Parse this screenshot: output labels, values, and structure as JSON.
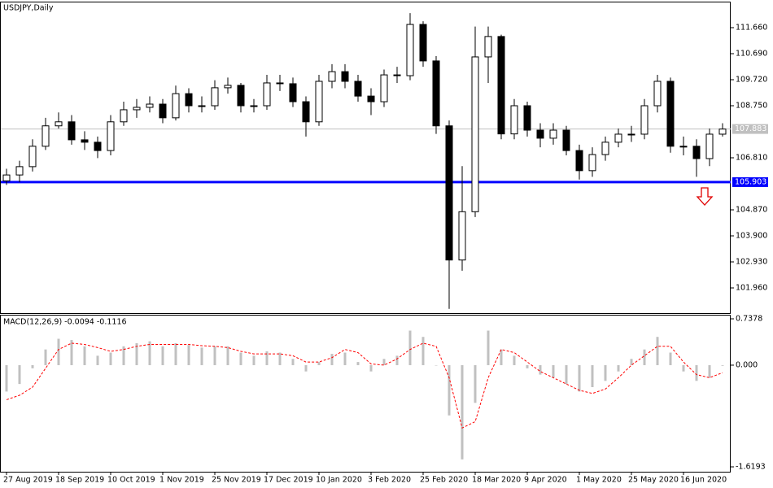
{
  "chart_data": [
    {
      "type": "candlestick",
      "title": "USDJPY,Daily",
      "categories": [
        "27 Aug 2019",
        null,
        null,
        null,
        "18 Sep 2019",
        null,
        null,
        null,
        "10 Oct 2019",
        null,
        null,
        null,
        "1 Nov 2019",
        null,
        null,
        null,
        "25 Nov 2019",
        null,
        null,
        null,
        "17 Dec 2019",
        null,
        null,
        null,
        "10 Jan 2020",
        null,
        null,
        null,
        "3 Feb 2020",
        null,
        null,
        null,
        "25 Feb 2020",
        null,
        null,
        null,
        "18 Mar 2020",
        null,
        null,
        null,
        "9 Apr 2020",
        null,
        null,
        null,
        "1 May 2020",
        null,
        null,
        null,
        "25 May 2020",
        null,
        null,
        null,
        "16 Jun 2020",
        null,
        null,
        null
      ],
      "open": [
        105.95,
        106.17,
        106.48,
        107.24,
        108.0,
        108.15,
        107.48,
        107.39,
        107.08,
        108.15,
        108.6,
        108.69,
        108.81,
        108.3,
        109.2,
        108.75,
        108.75,
        109.42,
        109.51,
        108.75,
        108.75,
        109.6,
        109.57,
        108.9,
        108.15,
        109.66,
        110.02,
        109.66,
        109.11,
        108.9,
        109.9,
        109.87,
        111.78,
        110.42,
        108.0,
        103.0,
        104.8,
        110.57,
        111.33,
        107.7,
        108.75,
        107.84,
        107.54,
        107.84,
        107.08,
        106.33,
        106.93,
        107.39,
        107.69,
        107.69,
        108.75,
        109.66,
        107.24,
        107.24,
        106.78,
        107.69
      ],
      "high": [
        106.4,
        106.7,
        107.5,
        108.3,
        108.5,
        108.4,
        107.8,
        107.6,
        108.4,
        108.9,
        109.0,
        109.1,
        109.0,
        109.5,
        109.4,
        109.1,
        109.7,
        109.8,
        109.6,
        109.0,
        109.9,
        109.9,
        109.8,
        109.1,
        109.9,
        110.3,
        110.3,
        109.9,
        109.4,
        110.1,
        110.2,
        112.2,
        111.9,
        110.6,
        108.2,
        106.5,
        111.7,
        111.7,
        111.4,
        109.0,
        108.9,
        108.1,
        108.1,
        108.0,
        107.3,
        107.2,
        107.6,
        107.9,
        108.0,
        109.0,
        109.9,
        109.8,
        107.6,
        107.5,
        107.9,
        108.1
      ],
      "low": [
        105.8,
        105.9,
        106.3,
        107.1,
        107.9,
        107.3,
        107.1,
        106.8,
        106.9,
        108.0,
        108.3,
        108.5,
        108.1,
        108.2,
        108.5,
        108.5,
        108.6,
        109.2,
        108.5,
        108.5,
        108.6,
        109.3,
        108.7,
        107.6,
        108.0,
        109.4,
        109.4,
        108.9,
        108.4,
        108.7,
        109.6,
        109.7,
        110.2,
        107.7,
        101.18,
        102.6,
        104.6,
        109.6,
        107.5,
        107.5,
        107.6,
        107.2,
        107.3,
        106.9,
        106.0,
        106.1,
        106.7,
        107.2,
        107.4,
        107.5,
        108.5,
        107.0,
        106.9,
        106.1,
        106.5,
        107.6
      ],
      "close": [
        106.17,
        106.48,
        107.24,
        108.0,
        108.15,
        107.48,
        107.39,
        107.08,
        108.15,
        108.6,
        108.69,
        108.81,
        108.3,
        109.2,
        108.75,
        108.75,
        109.42,
        109.51,
        108.75,
        108.75,
        109.6,
        109.57,
        108.9,
        108.15,
        109.66,
        110.02,
        109.66,
        109.11,
        108.9,
        109.9,
        109.87,
        111.78,
        110.42,
        108.0,
        103.0,
        104.8,
        110.57,
        111.33,
        107.7,
        108.75,
        107.84,
        107.54,
        107.84,
        107.08,
        106.33,
        106.93,
        107.39,
        107.69,
        107.69,
        108.75,
        109.66,
        107.24,
        107.24,
        106.78,
        107.69,
        107.88
      ],
      "up_color": "#ffffff",
      "down_color": "#000000",
      "outline_color": "#000000",
      "ylim": [
        101.02,
        112.63
      ],
      "yticks": [
        {
          "value": 111.66,
          "label": "111.660"
        },
        {
          "value": 110.69,
          "label": "110.690"
        },
        {
          "value": 109.72,
          "label": "109.720"
        },
        {
          "value": 108.75,
          "label": "108.750"
        },
        {
          "value": 106.81,
          "label": "106.810"
        },
        {
          "value": 104.87,
          "label": "104.870"
        },
        {
          "value": 103.9,
          "label": "103.900"
        },
        {
          "value": 102.93,
          "label": "102.930"
        },
        {
          "value": 101.96,
          "label": "101.960"
        }
      ],
      "lines": [
        {
          "value": 107.883,
          "label": "107.883",
          "color": "#c0c0c0"
        },
        {
          "value": 105.903,
          "label": "105.903",
          "color": "#0000ff"
        }
      ]
    },
    {
      "type": "macd",
      "title": "MACD(12,26,9) -0.0094 -0.1116",
      "series": [
        {
          "type": "bar",
          "color": "#c0c0c0",
          "values": [
            -0.42,
            -0.3,
            -0.05,
            0.25,
            0.42,
            0.4,
            0.3,
            0.15,
            0.2,
            0.3,
            0.35,
            0.38,
            0.3,
            0.35,
            0.32,
            0.28,
            0.3,
            0.3,
            0.2,
            0.15,
            0.22,
            0.2,
            0.1,
            -0.1,
            0.05,
            0.18,
            0.2,
            0.05,
            -0.1,
            0.1,
            0.15,
            0.55,
            0.45,
            0.0,
            -0.8,
            -1.5,
            -0.6,
            0.55,
            0.25,
            0.15,
            -0.05,
            -0.15,
            -0.2,
            -0.3,
            -0.42,
            -0.35,
            -0.25,
            -0.1,
            0.1,
            0.25,
            0.45,
            0.2,
            -0.1,
            -0.25,
            -0.2,
            -0.01
          ]
        },
        {
          "type": "line",
          "color": "#ff0000",
          "values": [
            -0.55,
            -0.48,
            -0.35,
            -0.05,
            0.25,
            0.35,
            0.33,
            0.28,
            0.22,
            0.25,
            0.3,
            0.33,
            0.33,
            0.33,
            0.33,
            0.31,
            0.3,
            0.28,
            0.22,
            0.18,
            0.18,
            0.18,
            0.15,
            0.05,
            0.05,
            0.12,
            0.25,
            0.2,
            0.02,
            0.0,
            0.1,
            0.25,
            0.35,
            0.3,
            -0.2,
            -1.0,
            -0.9,
            -0.2,
            0.25,
            0.2,
            0.05,
            -0.1,
            -0.2,
            -0.3,
            -0.4,
            -0.45,
            -0.38,
            -0.2,
            0.0,
            0.15,
            0.3,
            0.3,
            0.05,
            -0.15,
            -0.2,
            -0.12
          ]
        }
      ],
      "ylim": [
        -1.6193,
        0.7378
      ],
      "yticks": [
        {
          "value": 0.7378,
          "label": "0.7378"
        },
        {
          "value": 0,
          "label": "0.000"
        },
        {
          "value": -1.6193,
          "label": "-1.6193"
        }
      ]
    }
  ]
}
